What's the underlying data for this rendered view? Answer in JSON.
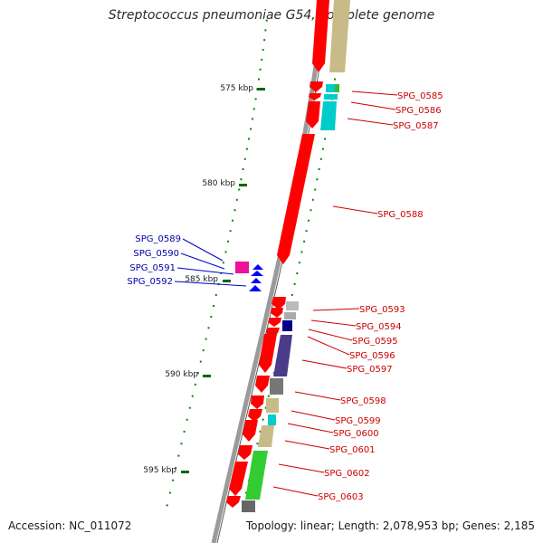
{
  "map": {
    "title": "Streptococcus pneumoniae G54, complete genome",
    "accession": "Accession: NC_011072",
    "summary": "Topology: linear; Length: 2,078,953 bp; Genes: 2,185",
    "scale_labels": [
      "575 kbp",
      "580 kbp",
      "585 kbp",
      "590 kbp",
      "595 kbp"
    ],
    "colors": {
      "backbone": "#999999",
      "forward_gene": "#ff0000",
      "reverse_gene": "#0000ff",
      "right_label": "#cc0000",
      "left_label": "#0000aa",
      "tick": "#006600"
    }
  },
  "genes_right": [
    {
      "label": "SPG_0585"
    },
    {
      "label": "SPG_0586"
    },
    {
      "label": "SPG_0587"
    },
    {
      "label": "SPG_0588"
    },
    {
      "label": "SPG_0593"
    },
    {
      "label": "SPG_0594"
    },
    {
      "label": "SPG_0595"
    },
    {
      "label": "SPG_0596"
    },
    {
      "label": "SPG_0597"
    },
    {
      "label": "SPG_0598"
    },
    {
      "label": "SPG_0599"
    },
    {
      "label": "SPG_0600"
    },
    {
      "label": "SPG_0601"
    },
    {
      "label": "SPG_0602"
    },
    {
      "label": "SPG_0603"
    }
  ],
  "genes_left": [
    {
      "label": "SPG_0589"
    },
    {
      "label": "SPG_0590"
    },
    {
      "label": "SPG_0591"
    },
    {
      "label": "SPG_0592"
    }
  ]
}
